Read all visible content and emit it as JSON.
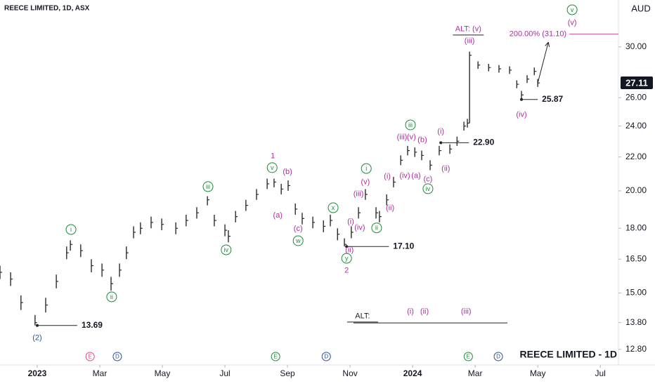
{
  "chart_data": {
    "type": "hlc",
    "title": "REECE LIMITED, 1D, ASX",
    "currency": "AUD",
    "watermark": "REECE LIMITED - 1D",
    "log_scale": true,
    "grid": false,
    "color": "#2b2b2b",
    "xlim": [
      -1.19,
      18.58
    ],
    "ylim": [
      12.25,
      34.23
    ],
    "xticks": [
      {
        "value": 0,
        "label": "2023"
      },
      {
        "value": 2,
        "label": "Mar"
      },
      {
        "value": 4,
        "label": "May"
      },
      {
        "value": 6,
        "label": "Jul"
      },
      {
        "value": 8,
        "label": "Sep"
      },
      {
        "value": 10,
        "label": "Nov"
      },
      {
        "value": 12,
        "label": "2024"
      },
      {
        "value": 14,
        "label": "Mar"
      },
      {
        "value": 16,
        "label": "May"
      },
      {
        "value": 18,
        "label": "Jul"
      }
    ],
    "yticks": [
      {
        "value": 12.8,
        "label": "12.80"
      },
      {
        "value": 13.8,
        "label": "13.80"
      },
      {
        "value": 15,
        "label": "15.00"
      },
      {
        "value": 16.5,
        "label": "16.50"
      },
      {
        "value": 18,
        "label": "18.00"
      },
      {
        "value": 20,
        "label": "20.00"
      },
      {
        "value": 22,
        "label": "22.00"
      },
      {
        "value": 24,
        "label": "24.00"
      },
      {
        "value": 26,
        "label": "26.00"
      },
      {
        "value": 30,
        "label": "30.00"
      }
    ],
    "series": [
      {
        "x": [
          -1.19,
          -0.85,
          -0.52,
          -0.07,
          0.27,
          0.61,
          0.94,
          1.06,
          1.39,
          1.73,
          2.07,
          2.36,
          2.63,
          2.85,
          3.08,
          3.3,
          3.64,
          3.98,
          4.43,
          4.76,
          5.1,
          5.44,
          5.66,
          6.0,
          6.11,
          6.34,
          6.67,
          7.01,
          7.35,
          7.57,
          7.8,
          8.02,
          8.25,
          8.47,
          8.81,
          9.15,
          9.37,
          9.6,
          9.82,
          10.04,
          10.27,
          10.49,
          10.83,
          10.94,
          11.17,
          11.39,
          11.62,
          11.84,
          12.07,
          12.29,
          12.56,
          12.85,
          13.19,
          13.42,
          13.64,
          13.75,
          13.82,
          14.09,
          14.43,
          14.76,
          15.1,
          15.33,
          15.48,
          15.66,
          15.89,
          16.0
        ],
        "close": [
          15.9,
          15.6,
          14.6,
          13.8,
          14.5,
          15.5,
          16.8,
          17.2,
          16.9,
          16.2,
          16.0,
          15.4,
          16.0,
          16.8,
          17.8,
          18.0,
          18.3,
          18.2,
          18.0,
          18.4,
          18.8,
          19.5,
          18.4,
          17.9,
          17.6,
          18.6,
          19.2,
          19.8,
          20.4,
          20.5,
          20.1,
          20.3,
          19.0,
          18.5,
          18.3,
          18.1,
          18.4,
          17.7,
          17.2,
          17.8,
          18.8,
          19.8,
          18.8,
          18.6,
          19.5,
          20.5,
          21.8,
          22.4,
          22.3,
          22.1,
          21.5,
          22.4,
          22.5,
          23.0,
          24.0,
          24.2,
          29.3,
          28.5,
          28.3,
          28.2,
          28.1,
          27.0,
          26.2,
          27.4,
          28.0,
          27.1
        ],
        "high": [
          16.2,
          15.9,
          14.9,
          14.1,
          14.8,
          15.8,
          17.1,
          17.4,
          17.2,
          16.5,
          16.3,
          15.7,
          16.3,
          17.1,
          18.1,
          18.3,
          18.6,
          18.5,
          18.3,
          18.7,
          19.1,
          19.7,
          18.7,
          18.2,
          17.9,
          18.9,
          19.5,
          20.1,
          20.7,
          20.7,
          20.4,
          20.6,
          19.3,
          18.8,
          18.6,
          18.4,
          18.7,
          18.0,
          17.5,
          18.1,
          19.1,
          20.1,
          19.1,
          18.9,
          19.8,
          20.8,
          22.1,
          22.7,
          22.6,
          22.4,
          21.8,
          22.7,
          22.8,
          23.3,
          24.3,
          24.5,
          29.6,
          28.8,
          28.6,
          28.5,
          28.4,
          27.3,
          26.5,
          27.7,
          28.3,
          27.4
        ],
        "low": [
          15.6,
          15.3,
          14.3,
          13.69,
          14.2,
          15.2,
          16.5,
          16.9,
          16.6,
          15.9,
          15.7,
          15.1,
          15.7,
          16.5,
          17.5,
          17.7,
          18.0,
          17.9,
          17.7,
          18.1,
          18.5,
          19.2,
          18.1,
          17.6,
          17.3,
          18.3,
          18.9,
          19.5,
          20.1,
          20.2,
          19.8,
          20.0,
          18.7,
          18.2,
          18.0,
          17.8,
          18.1,
          17.4,
          17.1,
          17.5,
          18.5,
          19.5,
          18.5,
          18.3,
          19.2,
          20.2,
          21.5,
          22.1,
          22.0,
          21.8,
          21.2,
          22.1,
          22.2,
          22.7,
          23.7,
          23.9,
          24.2,
          28.2,
          28.0,
          27.9,
          27.8,
          26.7,
          25.87,
          27.1,
          27.7,
          26.8
        ]
      }
    ],
    "last_price": 27.11,
    "levels": [
      {
        "value": 13.69,
        "x0": 0,
        "x1": 1.28
      },
      {
        "value": 17.1,
        "label": "17.10",
        "x0": 9.89,
        "x1": 11.24
      },
      {
        "value": 22.9,
        "label": "22.90",
        "x0": 12.9,
        "x1": 13.8
      },
      {
        "value": 25.87,
        "x0": 15.48,
        "x1": 16.0
      },
      {
        "value": 13.79,
        "x0": 10.11,
        "x1": 15.03
      },
      {
        "value": 31.1,
        "x0": 17.01,
        "x1": 18.58
      }
    ],
    "target_label": "200.00% (31.10)",
    "projection": {
      "x": [
        16.0,
        16.34
      ],
      "y": [
        27.1,
        30.4
      ]
    },
    "annotations": [
      {
        "text": "(2)",
        "x": 0,
        "y": 13.23,
        "color": "#2a55a0",
        "circled": false
      },
      {
        "text": "i",
        "x": 1.08,
        "y": 17.94,
        "color": "#1b8a3a",
        "circled": true
      },
      {
        "text": "ii",
        "x": 2.38,
        "y": 14.84,
        "color": "#1b8a3a",
        "circled": true
      },
      {
        "text": "iii",
        "x": 5.46,
        "y": 20.24,
        "color": "#1b8a3a",
        "circled": true
      },
      {
        "text": "iv",
        "x": 6.04,
        "y": 16.94,
        "color": "#1b8a3a",
        "circled": true
      },
      {
        "text": "v",
        "x": 7.51,
        "y": 21.35,
        "color": "#1b8a3a",
        "circled": true
      },
      {
        "text": "1",
        "x": 7.53,
        "y": 22.07,
        "color": "#b02ca0",
        "circled": false
      },
      {
        "text": "(b)",
        "x": 8.0,
        "y": 21.1,
        "color": "#b02ca0",
        "circled": false
      },
      {
        "text": "(a)",
        "x": 7.69,
        "y": 18.67,
        "color": "#b02ca0",
        "circled": false
      },
      {
        "text": "(c)",
        "x": 8.34,
        "y": 17.98,
        "color": "#b02ca0",
        "circled": false
      },
      {
        "text": "w",
        "x": 8.34,
        "y": 17.38,
        "color": "#1b8a3a",
        "circled": true
      },
      {
        "text": "x",
        "x": 9.46,
        "y": 19.07,
        "color": "#1b8a3a",
        "circled": true
      },
      {
        "text": "y",
        "x": 9.89,
        "y": 16.54,
        "color": "#1b8a3a",
        "circled": true
      },
      {
        "text": "2",
        "x": 9.89,
        "y": 15.99,
        "color": "#b02ca0",
        "circled": false
      },
      {
        "text": "(i)",
        "x": 10.02,
        "y": 18.34,
        "color": "#b02ca0",
        "circled": false
      },
      {
        "text": "(ii)",
        "x": 9.98,
        "y": 16.94,
        "color": "#b02ca0",
        "circled": false
      },
      {
        "text": "(iii)",
        "x": 10.27,
        "y": 19.84,
        "color": "#b02ca0",
        "circled": false
      },
      {
        "text": "(iv)",
        "x": 10.31,
        "y": 18.05,
        "color": "#b02ca0",
        "circled": false
      },
      {
        "text": "(v)",
        "x": 10.49,
        "y": 20.52,
        "color": "#b02ca0",
        "circled": false
      },
      {
        "text": "i",
        "x": 10.52,
        "y": 21.3,
        "color": "#1b8a3a",
        "circled": true
      },
      {
        "text": "ii",
        "x": 10.85,
        "y": 18.02,
        "color": "#1b8a3a",
        "circled": true
      },
      {
        "text": "(i)",
        "x": 11.19,
        "y": 20.85,
        "color": "#b02ca0",
        "circled": false
      },
      {
        "text": "(ii)",
        "x": 11.28,
        "y": 19.07,
        "color": "#b02ca0",
        "circled": false
      },
      {
        "text": "(iii)",
        "x": 11.66,
        "y": 23.28,
        "color": "#b02ca0",
        "circled": false
      },
      {
        "text": "(v)",
        "x": 11.96,
        "y": 23.28,
        "color": "#b02ca0",
        "circled": false
      },
      {
        "text": "iii",
        "x": 11.93,
        "y": 24.08,
        "color": "#1b8a3a",
        "circled": true
      },
      {
        "text": "(iv)",
        "x": 11.75,
        "y": 20.89,
        "color": "#b02ca0",
        "circled": false
      },
      {
        "text": "(a)",
        "x": 12.11,
        "y": 20.89,
        "color": "#b02ca0",
        "circled": false
      },
      {
        "text": "(b)",
        "x": 12.31,
        "y": 23.1,
        "color": "#b02ca0",
        "circled": false
      },
      {
        "text": "(c)",
        "x": 12.49,
        "y": 20.68,
        "color": "#b02ca0",
        "circled": false
      },
      {
        "text": "iv",
        "x": 12.49,
        "y": 20.12,
        "color": "#1b8a3a",
        "circled": true
      },
      {
        "text": "(i)",
        "x": 12.9,
        "y": 23.65,
        "color": "#b02ca0",
        "circled": false
      },
      {
        "text": "(ii)",
        "x": 13.06,
        "y": 21.3,
        "color": "#b02ca0",
        "circled": false
      },
      {
        "text": "ALT: (v)",
        "x": 13.78,
        "y": 31.57,
        "color": "#b02ca0",
        "circled": false
      },
      {
        "text": "(iii)",
        "x": 13.82,
        "y": 30.52,
        "color": "#b02ca0",
        "circled": false
      },
      {
        "text": "(iv)",
        "x": 15.48,
        "y": 24.8,
        "color": "#b02ca0",
        "circled": false
      },
      {
        "text": "v",
        "x": 17.1,
        "y": 33.3,
        "color": "#1b8a3a",
        "circled": true
      },
      {
        "text": "(v)",
        "x": 17.1,
        "y": 32.13,
        "color": "#b02ca0",
        "circled": false
      },
      {
        "text": "ALT:",
        "x": 10.4,
        "y": 14.07,
        "color": "#222222",
        "circled": false
      },
      {
        "text": "(i)",
        "x": 11.93,
        "y": 14.24,
        "color": "#b02ca0",
        "circled": false
      },
      {
        "text": "(ii)",
        "x": 12.38,
        "y": 14.24,
        "color": "#b02ca0",
        "circled": false
      },
      {
        "text": "(iii)",
        "x": 13.71,
        "y": 14.24,
        "color": "#b02ca0",
        "circled": false
      }
    ],
    "events": [
      {
        "label": "E",
        "x": 1.69,
        "color": "#e04a7f"
      },
      {
        "label": "D",
        "x": 2.56,
        "color": "#2a4d9a"
      },
      {
        "label": "E",
        "x": 7.62,
        "color": "#1b8a3a"
      },
      {
        "label": "D",
        "x": 9.24,
        "color": "#2a4d9a"
      },
      {
        "label": "E",
        "x": 13.78,
        "color": "#1b8a3a"
      },
      {
        "label": "D",
        "x": 14.74,
        "color": "#2a4d9a"
      }
    ]
  }
}
